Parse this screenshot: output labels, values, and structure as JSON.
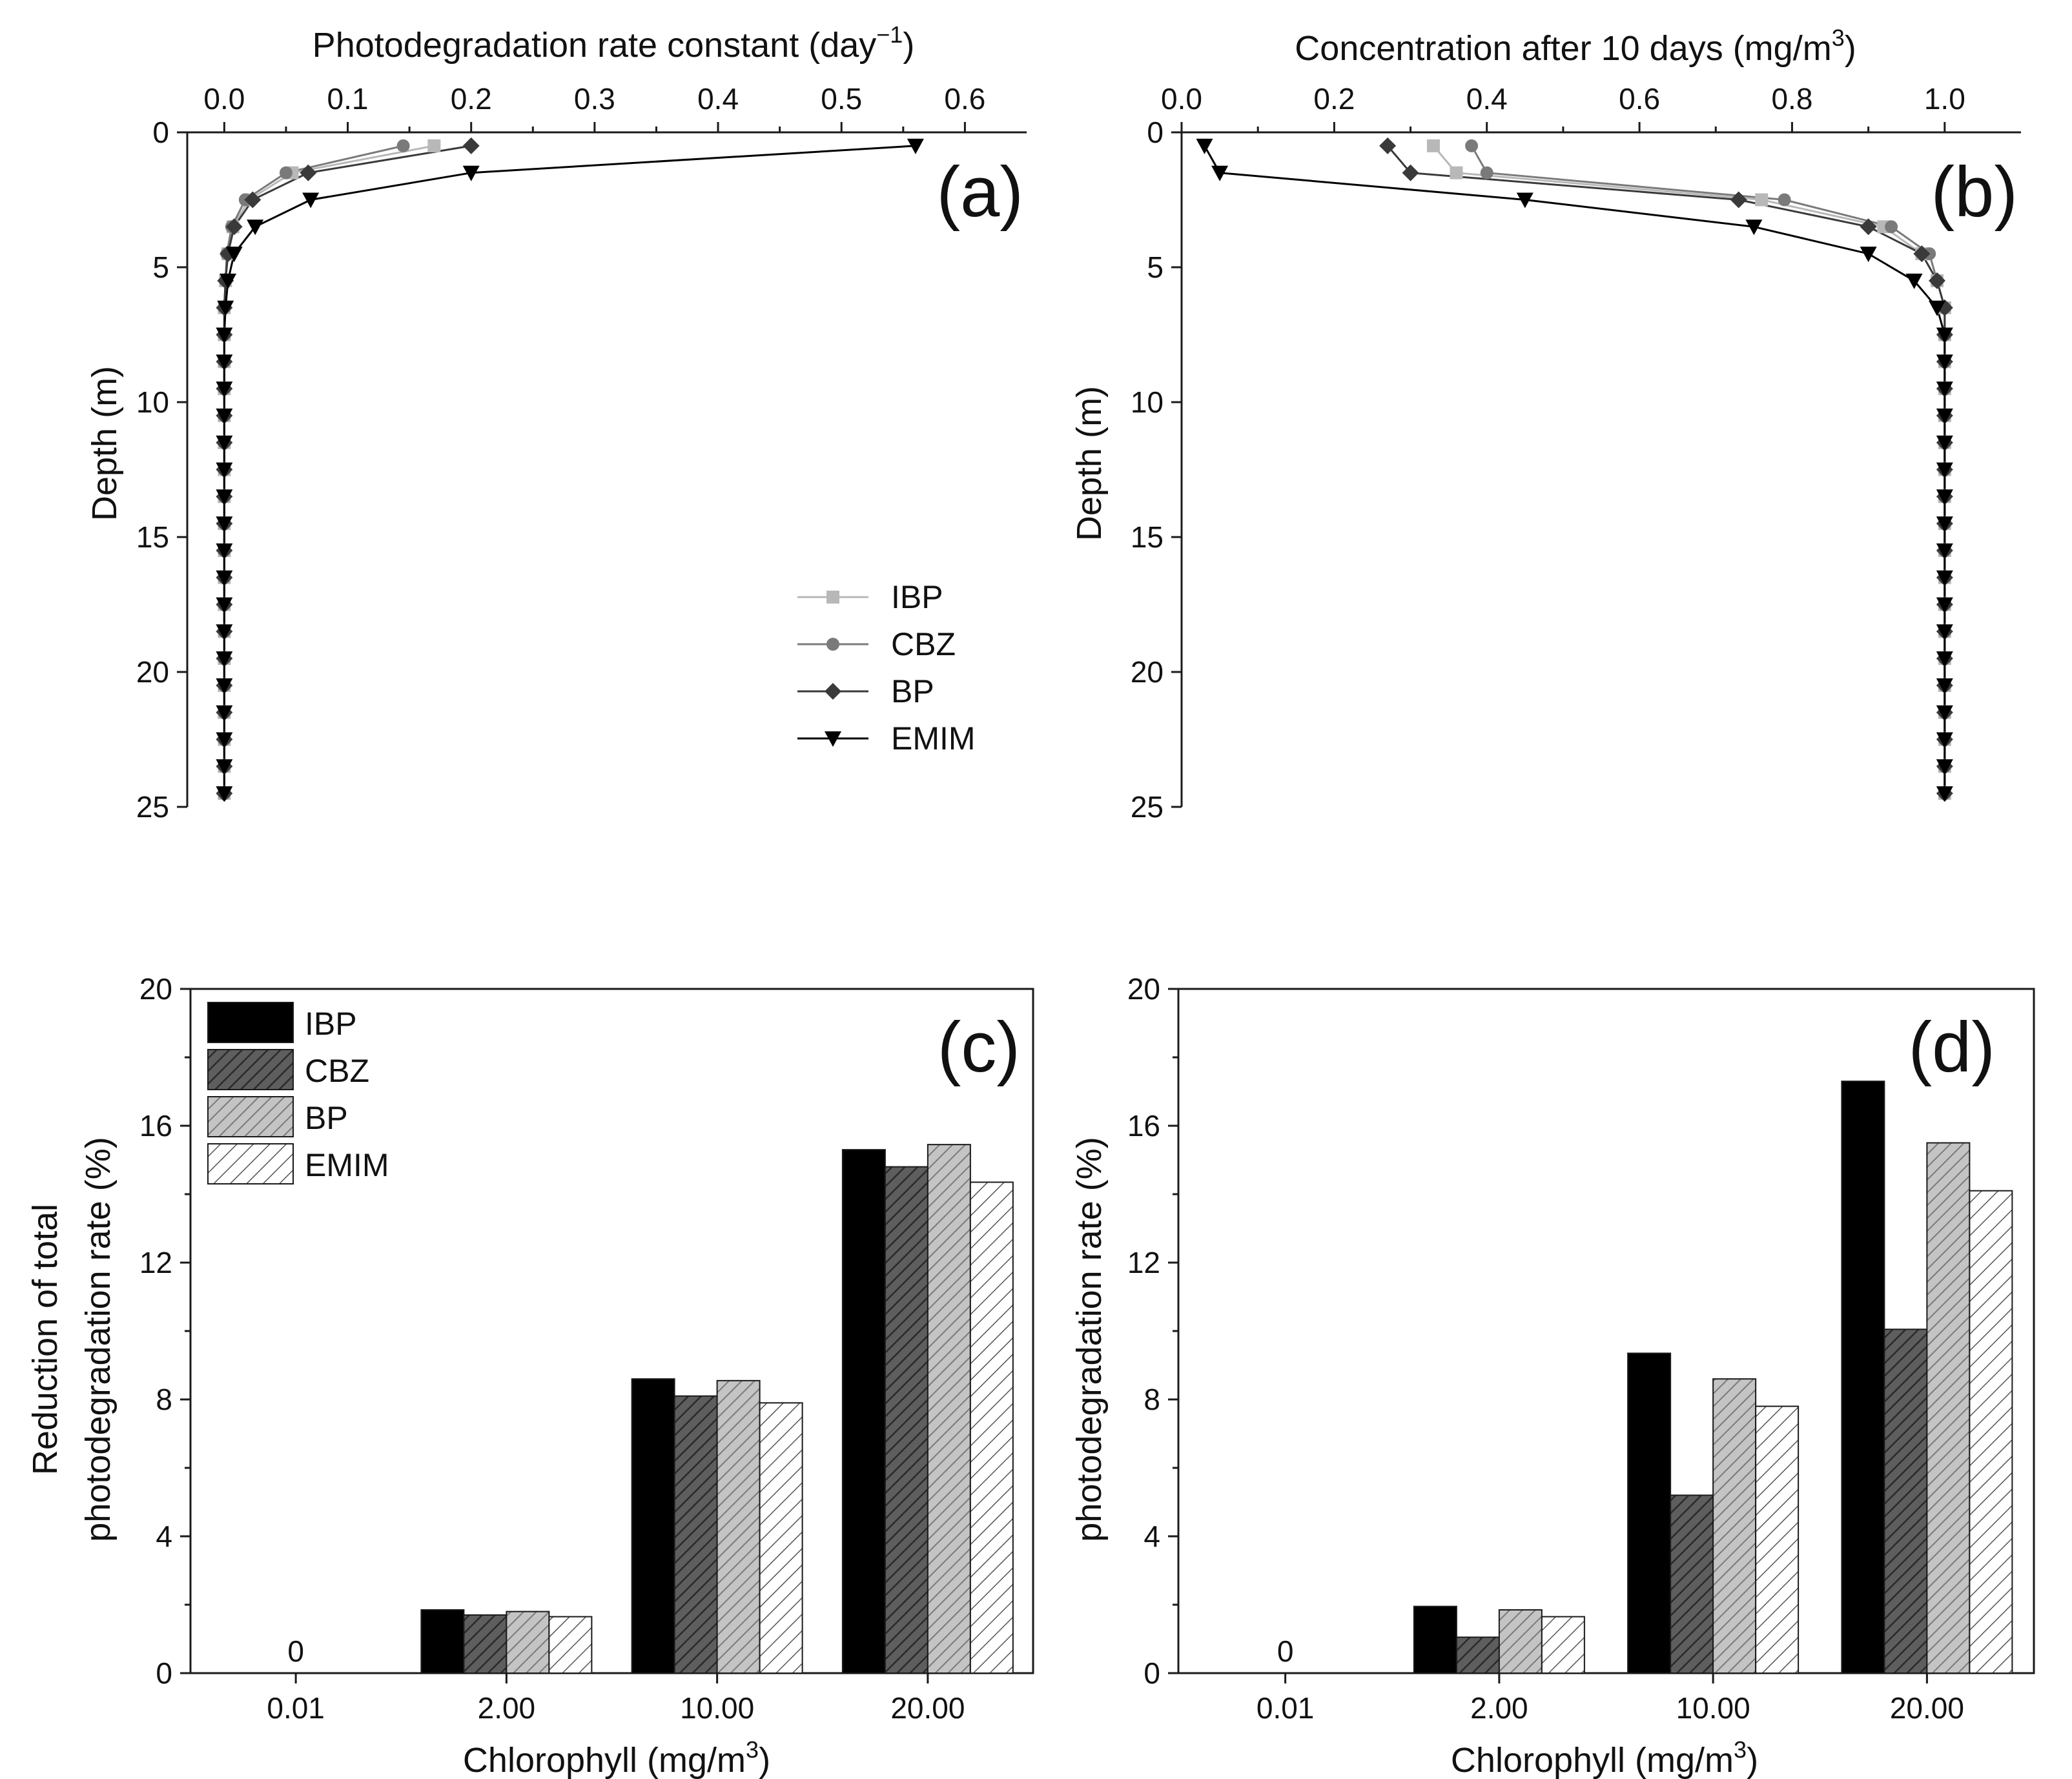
{
  "colors": {
    "IBP_line": "#b8b8b8",
    "CBZ_line": "#7a7a7a",
    "BP_line": "#3a3a3a",
    "EMIM_line": "#000000",
    "IBP_bar": "#000000",
    "CBZ_bar": "#5e5e5e",
    "BP_bar": "#bcbcbc",
    "EMIM_bar": "#ffffff"
  },
  "chart_data": [
    {
      "id": "a",
      "type": "line",
      "panel_label": "(a)",
      "title": "",
      "xlabel": "Photodegradation rate constant  (day",
      "xlabel_sup": "−1",
      "xlabel_tail": ")",
      "ylabel": "Depth (m)",
      "xlim": [
        -0.03,
        0.65
      ],
      "ylim": [
        0,
        25
      ],
      "y_inverted": true,
      "x_axis_position": "top",
      "xticks": [
        0.0,
        0.1,
        0.2,
        0.3,
        0.4,
        0.5,
        0.6
      ],
      "xtick_labels": [
        "0.0",
        "0.1",
        "0.2",
        "0.3",
        "0.4",
        "0.5",
        "0.6"
      ],
      "yticks": [
        0,
        5,
        10,
        15,
        20,
        25
      ],
      "ytick_labels": [
        "0",
        "5",
        "10",
        "15",
        "20",
        "25"
      ],
      "depth": [
        0.5,
        1.5,
        2.5,
        3.5,
        4.5,
        5.5,
        6.5,
        7.5,
        8.5,
        9.5,
        10.5,
        11.5,
        12.5,
        13.5,
        14.5,
        15.5,
        16.5,
        17.5,
        18.5,
        19.5,
        20.5,
        21.5,
        22.5,
        23.5,
        24.5
      ],
      "legend": {
        "position": "lower-right",
        "entries": [
          "IBP",
          "CBZ",
          "BP",
          "EMIM"
        ]
      },
      "series": [
        {
          "name": "IBP",
          "marker": "square",
          "values": [
            0.17,
            0.055,
            0.02,
            0.007,
            0.003,
            0.001,
            0.0,
            0.0,
            0.0,
            0.0,
            0.0,
            0.0,
            0.0,
            0.0,
            0.0,
            0.0,
            0.0,
            0.0,
            0.0,
            0.0,
            0.0,
            0.0,
            0.0,
            0.0,
            0.0
          ]
        },
        {
          "name": "CBZ",
          "marker": "circle",
          "values": [
            0.145,
            0.05,
            0.017,
            0.006,
            0.002,
            0.001,
            0.0,
            0.0,
            0.0,
            0.0,
            0.0,
            0.0,
            0.0,
            0.0,
            0.0,
            0.0,
            0.0,
            0.0,
            0.0,
            0.0,
            0.0,
            0.0,
            0.0,
            0.0,
            0.0
          ]
        },
        {
          "name": "BP",
          "marker": "diamond",
          "values": [
            0.2,
            0.068,
            0.023,
            0.008,
            0.003,
            0.001,
            0.0,
            0.0,
            0.0,
            0.0,
            0.0,
            0.0,
            0.0,
            0.0,
            0.0,
            0.0,
            0.0,
            0.0,
            0.0,
            0.0,
            0.0,
            0.0,
            0.0,
            0.0,
            0.0
          ]
        },
        {
          "name": "EMIM",
          "marker": "triangle-down",
          "values": [
            0.56,
            0.2,
            0.07,
            0.025,
            0.008,
            0.003,
            0.001,
            0.0,
            0.0,
            0.0,
            0.0,
            0.0,
            0.0,
            0.0,
            0.0,
            0.0,
            0.0,
            0.0,
            0.0,
            0.0,
            0.0,
            0.0,
            0.0,
            0.0,
            0.0
          ]
        }
      ]
    },
    {
      "id": "b",
      "type": "line",
      "panel_label": "(b)",
      "title": "",
      "xlabel": "Concentration after 10 days (mg/m",
      "xlabel_sup": "3",
      "xlabel_tail": ")",
      "ylabel": "Depth (m)",
      "xlim": [
        0.0,
        1.1
      ],
      "ylim": [
        0,
        25
      ],
      "y_inverted": true,
      "x_axis_position": "top",
      "xticks": [
        0.0,
        0.2,
        0.4,
        0.6,
        0.8,
        1.0
      ],
      "xtick_labels": [
        "0.0",
        "0.2",
        "0.4",
        "0.6",
        "0.8",
        "1.0"
      ],
      "yticks": [
        0,
        5,
        10,
        15,
        20,
        25
      ],
      "ytick_labels": [
        "0",
        "5",
        "10",
        "15",
        "20",
        "25"
      ],
      "depth": [
        0.5,
        1.5,
        2.5,
        3.5,
        4.5,
        5.5,
        6.5,
        7.5,
        8.5,
        9.5,
        10.5,
        11.5,
        12.5,
        13.5,
        14.5,
        15.5,
        16.5,
        17.5,
        18.5,
        19.5,
        20.5,
        21.5,
        22.5,
        23.5,
        24.5
      ],
      "series": [
        {
          "name": "IBP",
          "marker": "square",
          "values": [
            0.33,
            0.36,
            0.76,
            0.92,
            0.97,
            0.99,
            1.0,
            1.0,
            1.0,
            1.0,
            1.0,
            1.0,
            1.0,
            1.0,
            1.0,
            1.0,
            1.0,
            1.0,
            1.0,
            1.0,
            1.0,
            1.0,
            1.0,
            1.0,
            1.0
          ]
        },
        {
          "name": "CBZ",
          "marker": "circle",
          "values": [
            0.38,
            0.4,
            0.79,
            0.93,
            0.98,
            0.99,
            1.0,
            1.0,
            1.0,
            1.0,
            1.0,
            1.0,
            1.0,
            1.0,
            1.0,
            1.0,
            1.0,
            1.0,
            1.0,
            1.0,
            1.0,
            1.0,
            1.0,
            1.0,
            1.0
          ]
        },
        {
          "name": "BP",
          "marker": "diamond",
          "values": [
            0.27,
            0.3,
            0.73,
            0.9,
            0.97,
            0.99,
            1.0,
            1.0,
            1.0,
            1.0,
            1.0,
            1.0,
            1.0,
            1.0,
            1.0,
            1.0,
            1.0,
            1.0,
            1.0,
            1.0,
            1.0,
            1.0,
            1.0,
            1.0,
            1.0
          ]
        },
        {
          "name": "EMIM",
          "marker": "triangle-down",
          "values": [
            0.03,
            0.05,
            0.45,
            0.75,
            0.9,
            0.96,
            0.99,
            1.0,
            1.0,
            1.0,
            1.0,
            1.0,
            1.0,
            1.0,
            1.0,
            1.0,
            1.0,
            1.0,
            1.0,
            1.0,
            1.0,
            1.0,
            1.0,
            1.0,
            1.0
          ]
        }
      ]
    },
    {
      "id": "c",
      "type": "bar",
      "panel_label": "(c)",
      "title": "",
      "xlabel": "Chlorophyll (mg/m",
      "xlabel_sup": "3",
      "xlabel_tail": ")",
      "ylabel": "Reduction of total",
      "ylabel2": "photodegradation rate (%)",
      "categories": [
        "0.01",
        "2.00",
        "10.00",
        "20.00"
      ],
      "ylim": [
        0,
        20
      ],
      "yticks": [
        0,
        4,
        8,
        12,
        16,
        20
      ],
      "ytick_labels": [
        "0",
        "4",
        "8",
        "12",
        "16",
        "20"
      ],
      "annotation": "0",
      "legend": {
        "position": "top-left",
        "entries": [
          "IBP",
          "CBZ",
          "BP",
          "EMIM"
        ]
      },
      "series": [
        {
          "name": "IBP",
          "values": [
            0,
            1.85,
            8.6,
            15.3
          ]
        },
        {
          "name": "CBZ",
          "values": [
            0,
            1.7,
            8.1,
            14.8
          ]
        },
        {
          "name": "BP",
          "values": [
            0,
            1.8,
            8.55,
            15.45
          ]
        },
        {
          "name": "EMIM",
          "values": [
            0,
            1.65,
            7.9,
            14.35
          ]
        }
      ]
    },
    {
      "id": "d",
      "type": "bar",
      "panel_label": "(d)",
      "title": "",
      "xlabel": "Chlorophyll (mg/m",
      "xlabel_sup": "3",
      "xlabel_tail": ")",
      "ylabel": "photodegradation rate (%)",
      "categories": [
        "0.01",
        "2.00",
        "10.00",
        "20.00"
      ],
      "ylim": [
        0,
        20
      ],
      "yticks": [
        0,
        4,
        8,
        12,
        16,
        20
      ],
      "ytick_labels": [
        "0",
        "4",
        "8",
        "12",
        "16",
        "20"
      ],
      "annotation": "0",
      "series": [
        {
          "name": "IBP",
          "values": [
            0,
            1.95,
            9.35,
            17.3
          ]
        },
        {
          "name": "CBZ",
          "values": [
            0,
            1.05,
            5.2,
            10.05
          ]
        },
        {
          "name": "BP",
          "values": [
            0,
            1.85,
            8.6,
            15.5
          ]
        },
        {
          "name": "EMIM",
          "values": [
            0,
            1.65,
            7.8,
            14.1
          ]
        }
      ]
    }
  ]
}
